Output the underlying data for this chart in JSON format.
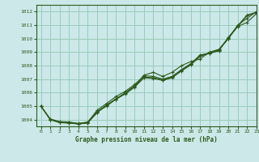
{
  "title": "Graphe pression niveau de la mer (hPa)",
  "bg_color": "#cce8e8",
  "grid_color": "#99ccbb",
  "line_color": "#2d5a1e",
  "xlim": [
    -0.5,
    23
  ],
  "ylim": [
    1003.5,
    1012.5
  ],
  "xticks": [
    0,
    1,
    2,
    3,
    4,
    5,
    6,
    7,
    8,
    9,
    10,
    11,
    12,
    13,
    14,
    15,
    16,
    17,
    18,
    19,
    20,
    21,
    22,
    23
  ],
  "yticks": [
    1004,
    1005,
    1006,
    1007,
    1008,
    1009,
    1010,
    1011,
    1012
  ],
  "series": [
    [
      1005.0,
      1004.0,
      1003.8,
      1003.8,
      1003.7,
      1003.8,
      1004.5,
      1005.1,
      1005.5,
      1006.0,
      1006.5,
      1007.3,
      1007.5,
      1007.2,
      1007.5,
      1008.0,
      1008.3,
      1008.5,
      1009.0,
      1009.2,
      1010.0,
      1011.0,
      1011.5,
      1012.0
    ],
    [
      1005.0,
      1004.05,
      1003.85,
      1003.82,
      1003.72,
      1003.82,
      1004.7,
      1005.2,
      1005.7,
      1006.1,
      1006.6,
      1007.25,
      1007.2,
      1007.0,
      1007.2,
      1007.7,
      1008.15,
      1008.8,
      1008.9,
      1009.1,
      1010.1,
      1010.9,
      1011.2,
      1011.85
    ],
    [
      1005.0,
      1004.0,
      1003.78,
      1003.75,
      1003.68,
      1003.75,
      1004.6,
      1005.05,
      1005.55,
      1005.95,
      1006.45,
      1007.15,
      1007.1,
      1006.95,
      1007.15,
      1007.65,
      1008.1,
      1008.75,
      1008.95,
      1009.2,
      1010.05,
      1010.95,
      1011.75,
      1011.95
    ],
    [
      1005.0,
      1004.0,
      1003.78,
      1003.75,
      1003.68,
      1003.75,
      1004.55,
      1005.0,
      1005.5,
      1005.9,
      1006.4,
      1007.1,
      1007.05,
      1006.9,
      1007.1,
      1007.6,
      1008.05,
      1008.7,
      1008.9,
      1009.15,
      1010.0,
      1010.9,
      1011.7,
      1011.92
    ]
  ]
}
